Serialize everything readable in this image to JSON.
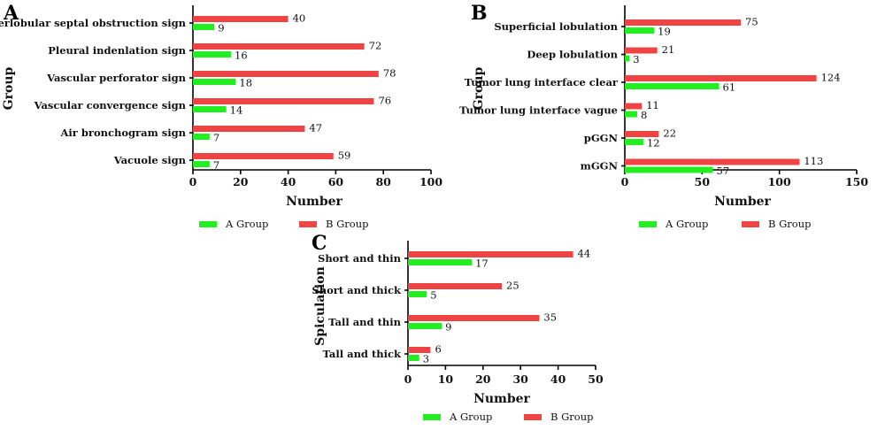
{
  "colors": {
    "a_group": "#22ee22",
    "b_group": "#ee4444"
  },
  "chart_data": [
    {
      "panel": "A",
      "type": "bar",
      "orientation": "horizontal",
      "categories": [
        "Interlobular septal obstruction sign",
        "Pleural indenlation sign",
        "Vascular perforator sign",
        "Vascular convergence sign",
        "Air bronchogram sign",
        "Vacuole sign"
      ],
      "series": [
        {
          "name": "B Group",
          "values": [
            40,
            72,
            78,
            76,
            47,
            59
          ]
        },
        {
          "name": "A Group",
          "values": [
            9,
            16,
            18,
            14,
            7,
            7
          ]
        }
      ],
      "xlabel": "Number",
      "ylabel": "Group",
      "xlim": [
        0,
        100
      ],
      "xticks": [
        "0",
        "20",
        "40",
        "60",
        "80",
        "100"
      ],
      "legend": [
        "A Group",
        "B Group"
      ],
      "legend_position": "bottom"
    },
    {
      "panel": "B",
      "type": "bar",
      "orientation": "horizontal",
      "categories": [
        "Superficial lobulation",
        "Deep lobulation",
        "Tumor lung interface clear",
        "Tumor lung interface vague",
        "pGGN",
        "mGGN"
      ],
      "series": [
        {
          "name": "B Group",
          "values": [
            75,
            21,
            124,
            11,
            22,
            113
          ]
        },
        {
          "name": "A Group",
          "values": [
            19,
            3,
            61,
            8,
            12,
            57
          ]
        }
      ],
      "xlabel": "Number",
      "ylabel": "Group",
      "xlim": [
        0,
        150
      ],
      "xticks": [
        "0",
        "50",
        "100",
        "150"
      ],
      "legend": [
        "A Group",
        "B Group"
      ],
      "legend_position": "bottom"
    },
    {
      "panel": "C",
      "type": "bar",
      "orientation": "horizontal",
      "categories": [
        "Short and thin",
        "Short and thick",
        "Tall and thin",
        "Tall and thick"
      ],
      "series": [
        {
          "name": "B Group",
          "values": [
            44,
            25,
            35,
            6
          ]
        },
        {
          "name": "A Group",
          "values": [
            17,
            5,
            9,
            3
          ]
        }
      ],
      "xlabel": "Number",
      "ylabel": "Spiculation",
      "xlim": [
        0,
        50
      ],
      "xticks": [
        "0",
        "10",
        "20",
        "30",
        "40",
        "50"
      ],
      "legend": [
        "A Group",
        "B Group"
      ],
      "legend_position": "bottom"
    }
  ]
}
